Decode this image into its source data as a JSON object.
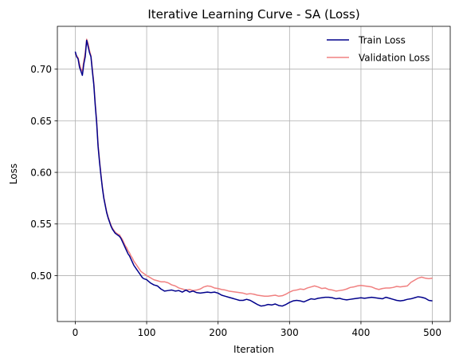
{
  "chart_data": {
    "type": "line",
    "title": "Iterative Learning Curve - SA (Loss)",
    "xlabel": "Iteration",
    "ylabel": "Loss",
    "xlim": [
      -25,
      525
    ],
    "ylim": [
      0.4555,
      0.7415
    ],
    "x_ticks": [
      0,
      100,
      200,
      300,
      400,
      500
    ],
    "y_ticks": [
      0.5,
      0.55,
      0.6,
      0.65,
      0.7
    ],
    "x_tick_labels": [
      "0",
      "100",
      "200",
      "300",
      "400",
      "500"
    ],
    "y_tick_labels": [
      "0.50",
      "0.55",
      "0.60",
      "0.65",
      "0.70"
    ],
    "grid": true,
    "legend_position": "top-right",
    "series": [
      {
        "name": "Train Loss",
        "color": "#00008b",
        "x": [
          0,
          2,
          4,
          6,
          8,
          10,
          12,
          14,
          16,
          18,
          20,
          22,
          24,
          26,
          28,
          30,
          32,
          34,
          36,
          38,
          40,
          42,
          44,
          46,
          48,
          50,
          52,
          54,
          56,
          58,
          60,
          62,
          64,
          66,
          68,
          70,
          72,
          74,
          76,
          78,
          80,
          82,
          84,
          86,
          88,
          90,
          92,
          94,
          96,
          98,
          100,
          105,
          110,
          115,
          120,
          125,
          130,
          135,
          140,
          145,
          150,
          155,
          160,
          165,
          170,
          175,
          180,
          185,
          190,
          195,
          200,
          205,
          210,
          215,
          220,
          225,
          230,
          235,
          240,
          245,
          250,
          255,
          260,
          265,
          270,
          275,
          280,
          285,
          290,
          295,
          300,
          305,
          310,
          315,
          320,
          325,
          330,
          335,
          340,
          345,
          350,
          355,
          360,
          365,
          370,
          375,
          380,
          385,
          390,
          395,
          400,
          405,
          410,
          415,
          420,
          425,
          430,
          435,
          440,
          445,
          450,
          455,
          460,
          465,
          470,
          475,
          480,
          485,
          490,
          495,
          500
        ],
        "values": [
          0.717,
          0.712,
          0.71,
          0.702,
          0.698,
          0.694,
          0.705,
          0.712,
          0.728,
          0.722,
          0.716,
          0.712,
          0.698,
          0.685,
          0.665,
          0.648,
          0.625,
          0.61,
          0.597,
          0.585,
          0.575,
          0.568,
          0.561,
          0.556,
          0.552,
          0.548,
          0.545,
          0.543,
          0.541,
          0.54,
          0.539,
          0.538,
          0.536,
          0.533,
          0.53,
          0.527,
          0.524,
          0.521,
          0.519,
          0.516,
          0.513,
          0.51,
          0.508,
          0.506,
          0.504,
          0.502,
          0.5,
          0.498,
          0.497,
          0.4965,
          0.496,
          0.493,
          0.491,
          0.49,
          0.487,
          0.485,
          0.4855,
          0.486,
          0.485,
          0.4855,
          0.484,
          0.486,
          0.484,
          0.485,
          0.4835,
          0.483,
          0.4835,
          0.484,
          0.4835,
          0.484,
          0.483,
          0.481,
          0.48,
          0.479,
          0.478,
          0.477,
          0.476,
          0.476,
          0.477,
          0.476,
          0.474,
          0.472,
          0.4705,
          0.471,
          0.472,
          0.4715,
          0.4725,
          0.471,
          0.4705,
          0.472,
          0.474,
          0.4755,
          0.476,
          0.4755,
          0.4745,
          0.476,
          0.4775,
          0.477,
          0.478,
          0.4785,
          0.479,
          0.479,
          0.4785,
          0.4775,
          0.478,
          0.477,
          0.4765,
          0.477,
          0.4775,
          0.478,
          0.4785,
          0.478,
          0.4785,
          0.479,
          0.4785,
          0.478,
          0.4775,
          0.479,
          0.478,
          0.477,
          0.476,
          0.4755,
          0.476,
          0.477,
          0.4775,
          0.4785,
          0.4795,
          0.479,
          0.478,
          0.476,
          0.4755
        ]
      },
      {
        "name": "Validation Loss",
        "color": "#f08080",
        "x": [
          0,
          2,
          4,
          6,
          8,
          10,
          12,
          14,
          16,
          18,
          20,
          22,
          24,
          26,
          28,
          30,
          32,
          34,
          36,
          38,
          40,
          42,
          44,
          46,
          48,
          50,
          52,
          54,
          56,
          58,
          60,
          62,
          64,
          66,
          68,
          70,
          72,
          74,
          76,
          78,
          80,
          82,
          84,
          86,
          88,
          90,
          92,
          94,
          96,
          98,
          100,
          105,
          110,
          115,
          120,
          125,
          130,
          135,
          140,
          145,
          150,
          155,
          160,
          165,
          170,
          175,
          180,
          185,
          190,
          195,
          200,
          205,
          210,
          215,
          220,
          225,
          230,
          235,
          240,
          245,
          250,
          255,
          260,
          265,
          270,
          275,
          280,
          285,
          290,
          295,
          300,
          305,
          310,
          315,
          320,
          325,
          330,
          335,
          340,
          345,
          350,
          355,
          360,
          365,
          370,
          375,
          380,
          385,
          390,
          395,
          400,
          405,
          410,
          415,
          420,
          425,
          430,
          435,
          440,
          445,
          450,
          455,
          460,
          465,
          470,
          475,
          480,
          485,
          490,
          495,
          500
        ],
        "values": [
          0.715,
          0.713,
          0.711,
          0.705,
          0.7,
          0.698,
          0.708,
          0.716,
          0.729,
          0.725,
          0.718,
          0.713,
          0.7,
          0.687,
          0.667,
          0.65,
          0.627,
          0.612,
          0.598,
          0.586,
          0.576,
          0.569,
          0.562,
          0.557,
          0.553,
          0.549,
          0.546,
          0.544,
          0.542,
          0.541,
          0.54,
          0.5395,
          0.537,
          0.535,
          0.532,
          0.529,
          0.527,
          0.524,
          0.522,
          0.519,
          0.517,
          0.514,
          0.512,
          0.51,
          0.508,
          0.506,
          0.504,
          0.503,
          0.502,
          0.501,
          0.5,
          0.498,
          0.496,
          0.495,
          0.494,
          0.494,
          0.493,
          0.491,
          0.49,
          0.488,
          0.487,
          0.486,
          0.4865,
          0.4855,
          0.486,
          0.487,
          0.489,
          0.49,
          0.4895,
          0.488,
          0.4875,
          0.4865,
          0.486,
          0.485,
          0.4845,
          0.484,
          0.4835,
          0.483,
          0.482,
          0.4825,
          0.482,
          0.481,
          0.4805,
          0.48,
          0.48,
          0.4805,
          0.481,
          0.48,
          0.4805,
          0.482,
          0.484,
          0.4855,
          0.486,
          0.487,
          0.4865,
          0.488,
          0.489,
          0.49,
          0.489,
          0.4875,
          0.488,
          0.4865,
          0.486,
          0.485,
          0.4855,
          0.486,
          0.487,
          0.4885,
          0.489,
          0.49,
          0.4905,
          0.49,
          0.4895,
          0.489,
          0.4875,
          0.4865,
          0.4875,
          0.488,
          0.488,
          0.4885,
          0.4895,
          0.489,
          0.4895,
          0.49,
          0.4935,
          0.4955,
          0.4975,
          0.4985,
          0.4975,
          0.497,
          0.4975
        ]
      }
    ]
  }
}
